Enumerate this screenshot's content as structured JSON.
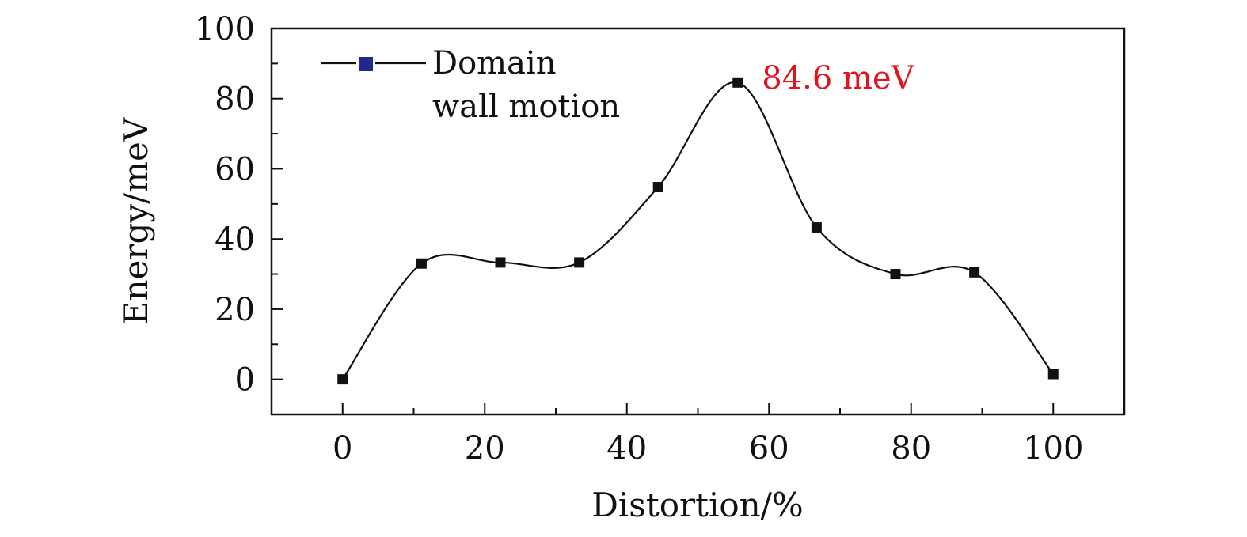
{
  "chart_data": {
    "type": "line",
    "title": "",
    "xlabel": "Distortion/%",
    "ylabel": "Energy/meV",
    "xlim": [
      -10,
      110
    ],
    "ylim": [
      -10,
      100
    ],
    "x_ticks": [
      0,
      20,
      40,
      60,
      80,
      100
    ],
    "y_ticks": [
      0,
      20,
      40,
      60,
      80,
      100
    ],
    "grid": false,
    "legend": {
      "position": "top-left"
    },
    "series": [
      {
        "name": "Domain wall motion",
        "legend_lines": [
          "Domain",
          "wall motion"
        ],
        "marker": "square",
        "marker_color": "#111111",
        "legend_marker_color": "#1f2a8c",
        "line_color": "#111111",
        "smooth": true,
        "x": [
          0,
          11.1,
          22.2,
          33.3,
          44.4,
          55.6,
          66.7,
          77.8,
          88.9,
          100
        ],
        "y": [
          0,
          33,
          33.3,
          33.3,
          54.8,
          84.6,
          43.3,
          30,
          30.5,
          1.5
        ]
      }
    ],
    "annotations": [
      {
        "text": "84.6 meV",
        "x": 59,
        "y": 86,
        "color": "#e0141e"
      }
    ]
  }
}
